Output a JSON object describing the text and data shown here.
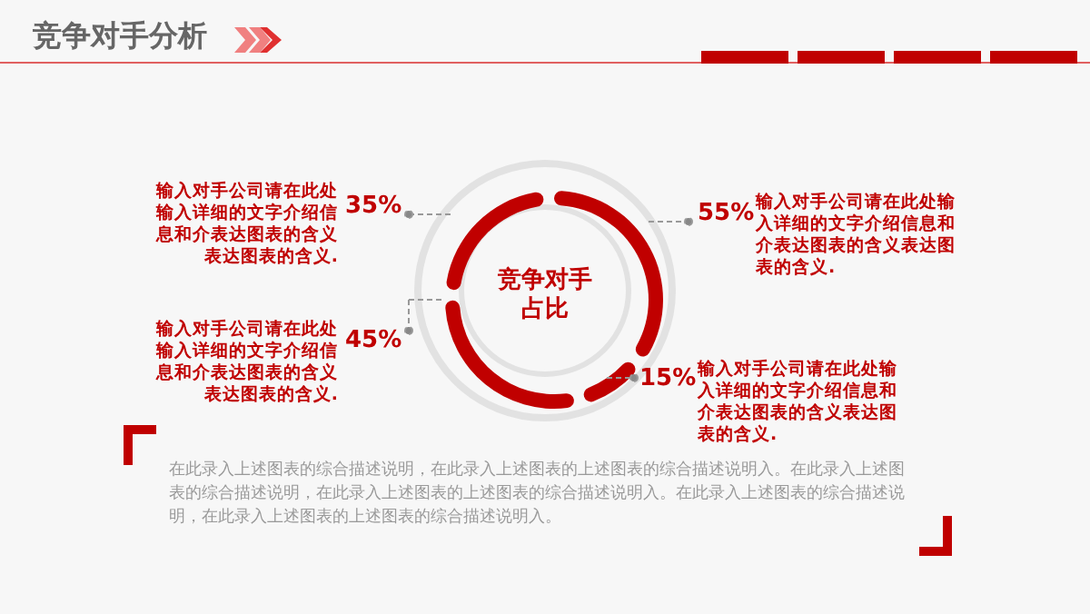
{
  "chart_data": {
    "type": "donut",
    "title": "竞争对手分析",
    "subtitle": "竞争对手占比",
    "categories": [
      "输入对手公司请在此处输入详细的文字介绍信息和介表达图表的含义表达图表的含义.",
      "输入对手公司请在此处输入详细的文字介绍信息和介表达图表的含义表达图表的含义.",
      "输入对手公司请在此处输入详细的文字介绍信息和介表达图表的含义表达图表的含义.",
      "输入对手公司请在此处输入详细的文字介绍信息和介表达图表的含义表达图表的含义."
    ],
    "values": [
      55,
      15,
      45,
      35
    ],
    "value_labels": [
      "55%",
      "15%",
      "45%",
      "35%"
    ],
    "colors": [
      "#c00000",
      "#c00000",
      "#c00000",
      "#c00000"
    ],
    "annotations": [
      "在此录入上述图表的综合描述说明，在此录入上述图表的上述图表的综合描述说明入。在此录入上述图表的综合描述说明，在此录入上述图表的上述图表的综合描述说明入。在此录入上述图表的综合描述说明，在此录入上述图表的上述图表的综合描述说明入。"
    ]
  }
}
